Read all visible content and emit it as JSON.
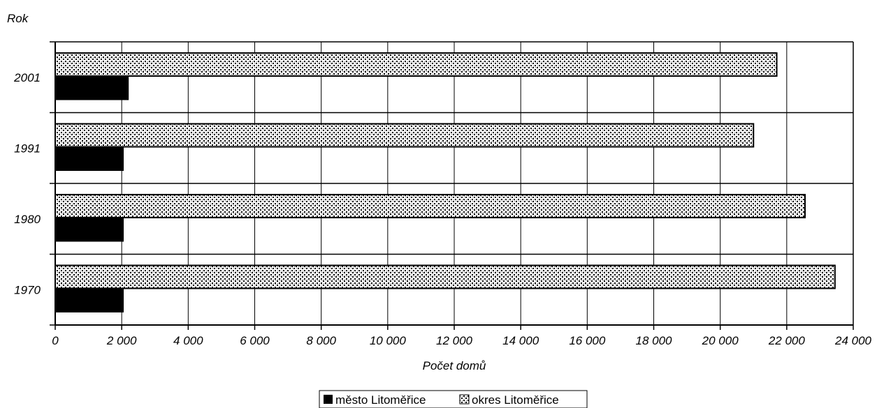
{
  "chart_data": {
    "type": "bar",
    "orientation": "horizontal",
    "title": "",
    "xlabel": "Počet domů",
    "ylabel": "Rok",
    "categories": [
      "2001",
      "1991",
      "1980",
      "1970"
    ],
    "series": [
      {
        "name": "město Litoměřice",
        "values": [
          2200,
          2050,
          2050,
          2050
        ],
        "color": "#000000"
      },
      {
        "name": "okres Litoměřice",
        "values": [
          21700,
          21000,
          22550,
          23450
        ],
        "color": "#d9d9d9"
      }
    ],
    "xlim": [
      0,
      24000
    ],
    "xticks": [
      0,
      2000,
      4000,
      6000,
      8000,
      10000,
      12000,
      14000,
      16000,
      18000,
      20000,
      22000,
      24000
    ],
    "xtick_labels": [
      "0",
      "2 000",
      "4 000",
      "6 000",
      "8 000",
      "10 000",
      "12 000",
      "14 000",
      "16 000",
      "18 000",
      "20 000",
      "22 000",
      "24 000"
    ],
    "grid": true,
    "legend_position": "bottom-center"
  }
}
